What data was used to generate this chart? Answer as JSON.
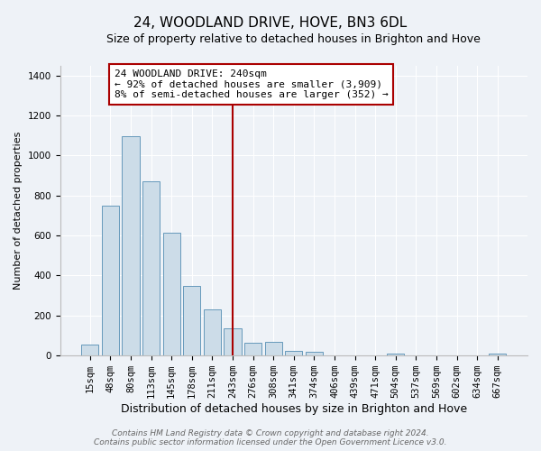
{
  "title": "24, WOODLAND DRIVE, HOVE, BN3 6DL",
  "subtitle": "Size of property relative to detached houses in Brighton and Hove",
  "xlabel": "Distribution of detached houses by size in Brighton and Hove",
  "ylabel": "Number of detached properties",
  "bar_labels": [
    "15sqm",
    "48sqm",
    "80sqm",
    "113sqm",
    "145sqm",
    "178sqm",
    "211sqm",
    "243sqm",
    "276sqm",
    "308sqm",
    "341sqm",
    "374sqm",
    "406sqm",
    "439sqm",
    "471sqm",
    "504sqm",
    "537sqm",
    "569sqm",
    "602sqm",
    "634sqm",
    "667sqm"
  ],
  "bar_values": [
    55,
    750,
    1095,
    870,
    615,
    350,
    230,
    135,
    65,
    70,
    25,
    20,
    0,
    0,
    0,
    12,
    0,
    0,
    0,
    0,
    12
  ],
  "bar_color": "#ccdce8",
  "bar_edge_color": "#6699bb",
  "vline_x_idx": 7,
  "vline_color": "#aa0000",
  "annotation_text": "24 WOODLAND DRIVE: 240sqm\n← 92% of detached houses are smaller (3,909)\n8% of semi-detached houses are larger (352) →",
  "annotation_box_facecolor": "#ffffff",
  "annotation_box_edgecolor": "#aa0000",
  "ylim": [
    0,
    1450
  ],
  "yticks": [
    0,
    200,
    400,
    600,
    800,
    1000,
    1200,
    1400
  ],
  "footer_line1": "Contains HM Land Registry data © Crown copyright and database right 2024.",
  "footer_line2": "Contains public sector information licensed under the Open Government Licence v3.0.",
  "background_color": "#eef2f7",
  "plot_bg_color": "#eef2f7",
  "grid_color": "#ffffff",
  "title_fontsize": 11,
  "subtitle_fontsize": 9,
  "xlabel_fontsize": 9,
  "ylabel_fontsize": 8,
  "tick_fontsize": 7.5,
  "annotation_fontsize": 8,
  "footer_fontsize": 6.5
}
